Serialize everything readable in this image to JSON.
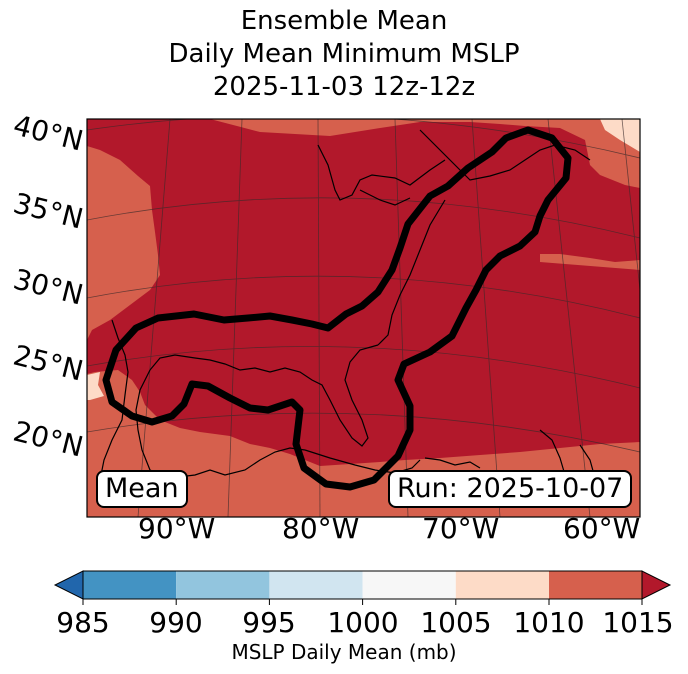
{
  "title": {
    "line1": "Ensemble Mean",
    "line2": "Daily Mean Minimum MSLP",
    "line3": "2025-11-03 12z-12z"
  },
  "map": {
    "label_left": "Mean",
    "label_right": "Run: 2025-10-07",
    "lat_labels": [
      "40°N",
      "35°N",
      "30°N",
      "25°N",
      "20°N"
    ],
    "lon_labels": [
      "90°W",
      "80°W",
      "70°W",
      "60°W"
    ],
    "contour_color": "#000000",
    "field_colors": {
      "1005-1010": "#fddbc7",
      "1010-1015": "#d6604d",
      "1015+": "#b2182b"
    }
  },
  "colorbar": {
    "title": "MSLP Daily Mean (mb)",
    "ticks": [
      "985",
      "990",
      "995",
      "1000",
      "1005",
      "1010",
      "1015"
    ],
    "colors": [
      "#4393c3",
      "#92c5de",
      "#d1e5f0",
      "#f7f7f7",
      "#fddbc7",
      "#d6604d"
    ],
    "under_color": "#2166ac",
    "over_color": "#b2182b"
  }
}
